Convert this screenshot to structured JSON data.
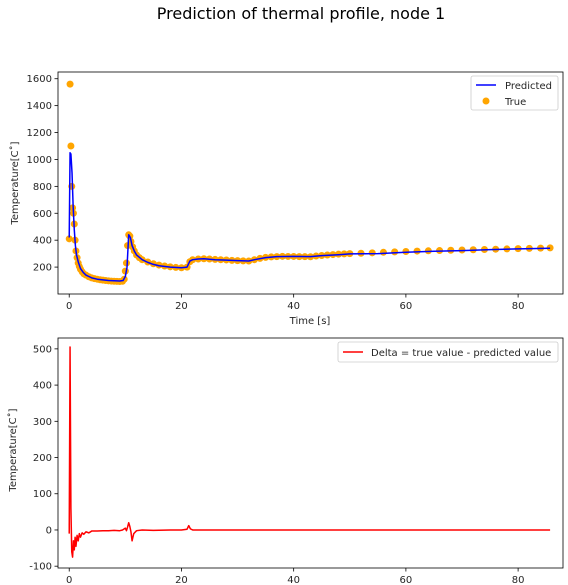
{
  "figure": {
    "suptitle": "Prediction of thermal profile, node 1"
  },
  "chart_data": [
    {
      "type": "line",
      "ylabel": "Temperature[C$^\\circ$]",
      "ylabel_display": "Temperature[C˚]",
      "xlabel": "Time [s]",
      "xlim": [
        -2,
        88
      ],
      "ylim": [
        0,
        1650
      ],
      "xticks": [
        0,
        20,
        40,
        60,
        80
      ],
      "yticks": [
        200,
        400,
        600,
        800,
        1000,
        1200,
        1400,
        1600
      ],
      "legend_position": "top-right",
      "series": [
        {
          "name": "Predicted",
          "kind": "line",
          "color": "#0000ff",
          "x": [
            0.0,
            0.15,
            0.3,
            0.5,
            0.7,
            0.9,
            1.1,
            1.3,
            1.6,
            2.0,
            2.5,
            3.0,
            3.5,
            4.0,
            5.0,
            6.0,
            7.0,
            8.0,
            9.0,
            9.6,
            10.0,
            10.3,
            10.6,
            10.9,
            11.2,
            11.6,
            12.0,
            13.0,
            14.0,
            15.0,
            16.0,
            18.0,
            20.0,
            21.0,
            21.5,
            22.0,
            23.0,
            24.0,
            25.0,
            26.0,
            28.0,
            30.0,
            32.0,
            33.0,
            35.0,
            37.0,
            40.0,
            43.0,
            45.0,
            48.0,
            50.0,
            55.0,
            60.0,
            65.0,
            70.0,
            75.0,
            80.0,
            85.7
          ],
          "y": [
            420,
            1050,
            1040,
            900,
            650,
            480,
            360,
            290,
            240,
            190,
            160,
            140,
            130,
            120,
            110,
            105,
            100,
            98,
            97,
            100,
            130,
            200,
            440,
            420,
            360,
            320,
            290,
            255,
            235,
            220,
            210,
            200,
            195,
            200,
            245,
            255,
            260,
            262,
            258,
            255,
            252,
            248,
            245,
            255,
            270,
            278,
            280,
            278,
            285,
            292,
            298,
            300,
            310,
            318,
            322,
            330,
            335,
            340
          ]
        },
        {
          "name": "True",
          "kind": "scatter",
          "color": "#ffa500",
          "x": [
            0.0,
            0.15,
            0.3,
            0.45,
            0.6,
            0.75,
            0.9,
            1.05,
            1.2,
            1.4,
            1.6,
            1.8,
            2.0,
            2.3,
            2.6,
            3.0,
            3.5,
            4.0,
            4.5,
            5.0,
            5.5,
            6.0,
            6.5,
            7.0,
            7.5,
            8.0,
            8.5,
            9.0,
            9.5,
            9.8,
            10.0,
            10.2,
            10.4,
            10.6,
            10.8,
            11.0,
            11.3,
            11.6,
            12.0,
            12.5,
            13.0,
            14.0,
            15.0,
            16.0,
            17.0,
            18.0,
            19.0,
            20.0,
            21.0,
            21.5,
            22.0,
            23.0,
            24.0,
            25.0,
            26.0,
            27.0,
            28.0,
            29.0,
            30.0,
            31.0,
            32.0,
            33.0,
            34.0,
            35.0,
            36.0,
            37.0,
            38.0,
            39.0,
            40.0,
            41.0,
            42.0,
            43.0,
            44.0,
            45.0,
            46.0,
            47.0,
            48.0,
            49.0,
            50.0,
            52.0,
            54.0,
            56.0,
            58.0,
            60.0,
            62.0,
            64.0,
            66.0,
            68.0,
            70.0,
            72.0,
            74.0,
            76.0,
            78.0,
            80.0,
            82.0,
            84.0,
            85.7
          ],
          "y": [
            410,
            1560,
            1100,
            800,
            640,
            600,
            520,
            400,
            320,
            270,
            230,
            205,
            185,
            165,
            150,
            140,
            128,
            120,
            114,
            110,
            106,
            103,
            100,
            98,
            96,
            95,
            94,
            93,
            95,
            110,
            170,
            230,
            360,
            440,
            430,
            390,
            350,
            320,
            290,
            270,
            255,
            238,
            225,
            215,
            208,
            202,
            198,
            195,
            200,
            240,
            255,
            260,
            262,
            260,
            257,
            255,
            253,
            250,
            248,
            246,
            245,
            255,
            265,
            272,
            276,
            278,
            280,
            279,
            279,
            278,
            278,
            277,
            282,
            286,
            290,
            293,
            296,
            298,
            300,
            303,
            306,
            310,
            313,
            316,
            319,
            321,
            323,
            325,
            327,
            329,
            331,
            333,
            335,
            337,
            339,
            341,
            343
          ]
        }
      ]
    },
    {
      "type": "line",
      "ylabel": "Temperature[C$^\\circ$]",
      "ylabel_display": "Temperature[C˚]",
      "xlabel": "",
      "xlim": [
        -2,
        88
      ],
      "ylim": [
        -105,
        530
      ],
      "xticks": [
        0,
        20,
        40,
        60,
        80
      ],
      "yticks": [
        -100,
        0,
        100,
        200,
        300,
        400,
        500
      ],
      "legend_position": "top-right",
      "series": [
        {
          "name": "Delta = true value - predicted value",
          "kind": "line",
          "color": "#ff0000",
          "x": [
            0.0,
            0.15,
            0.3,
            0.45,
            0.6,
            0.75,
            0.9,
            1.05,
            1.2,
            1.4,
            1.6,
            1.8,
            2.0,
            2.3,
            2.6,
            3.0,
            3.5,
            4.0,
            5.0,
            6.0,
            7.0,
            8.0,
            9.0,
            9.5,
            10.0,
            10.2,
            10.4,
            10.6,
            10.8,
            11.0,
            11.2,
            11.5,
            12.0,
            13.0,
            15.0,
            18.0,
            20.0,
            21.0,
            21.3,
            21.6,
            22.0,
            23.0,
            25.0,
            30.0,
            40.0,
            50.0,
            60.0,
            70.0,
            80.0,
            85.7
          ],
          "y": [
            -10,
            505,
            60,
            -60,
            -75,
            -30,
            -55,
            -20,
            -45,
            -15,
            -30,
            -10,
            -20,
            -8,
            -12,
            -5,
            -8,
            -3,
            -3,
            -2,
            -2,
            -1,
            -2,
            0,
            5,
            -2,
            8,
            20,
            10,
            -5,
            -30,
            -10,
            -2,
            0,
            -1,
            0,
            0,
            2,
            12,
            3,
            0,
            0,
            0,
            0,
            0,
            0,
            0,
            0,
            0,
            0
          ]
        }
      ]
    }
  ]
}
